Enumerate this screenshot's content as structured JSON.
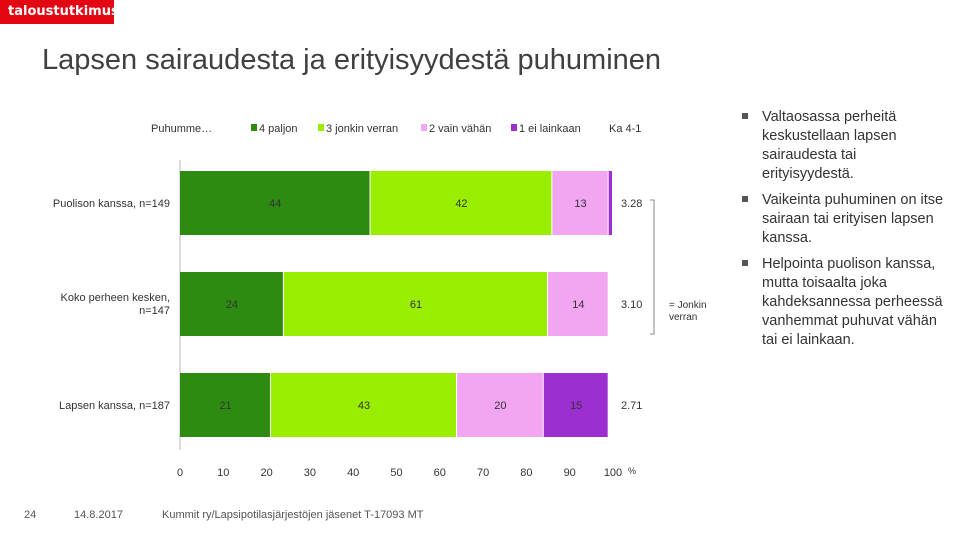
{
  "header": {
    "logo": "taloustutkimus",
    "title": "Lapsen sairaudesta ja erityisyydestä puhuminen"
  },
  "chart_data": {
    "type": "bar",
    "orientation": "horizontal",
    "stacked": true,
    "legend_title": "Puhumme…",
    "categories": [
      "Puolison kanssa, n=149",
      "Koko perheen kesken, n=147",
      "Lapsen kanssa, n=187"
    ],
    "series": [
      {
        "name": "4 paljon",
        "color": "#2e8b12",
        "values": [
          44,
          24,
          21
        ]
      },
      {
        "name": "3 jonkin verran",
        "color": "#99ee00",
        "values": [
          42,
          61,
          43
        ]
      },
      {
        "name": "2 vain vähän",
        "color": "#f2a6f2",
        "values": [
          13,
          14,
          20
        ]
      },
      {
        "name": "1 ei lainkaan",
        "color": "#9b2fcf",
        "values": [
          1,
          0,
          15
        ]
      }
    ],
    "value_labels": [
      [
        "44",
        "42",
        "13",
        ""
      ],
      [
        "24",
        "61",
        "14",
        ""
      ],
      [
        "21",
        "43",
        "20",
        "15"
      ]
    ],
    "averages_header": "Ka 4-1",
    "averages": [
      "3.28",
      "3.10",
      "2.71"
    ],
    "x_ticks": [
      "0",
      "10",
      "20",
      "30",
      "40",
      "50",
      "60",
      "70",
      "80",
      "90",
      "100"
    ],
    "x_unit": "%",
    "xlim": [
      0,
      100
    ],
    "bracket_note": "= Jonkin verran"
  },
  "bullets": [
    "Valtaosassa perheitä keskustellaan lapsen sairaudesta tai erityisyydestä.",
    "Vaikeinta puhuminen on itse sairaan tai erityisen lapsen kanssa.",
    "Helpointa puolison kanssa, mutta toisaalta joka kahdeksannessa perheessä vanhemmat puhuvat vähän tai ei lainkaan."
  ],
  "footer": {
    "page": "24",
    "date": "14.8.2017",
    "source": "Kummit ry/Lapsipotilasjärjestöjen jäsenet T-17093 MT"
  }
}
